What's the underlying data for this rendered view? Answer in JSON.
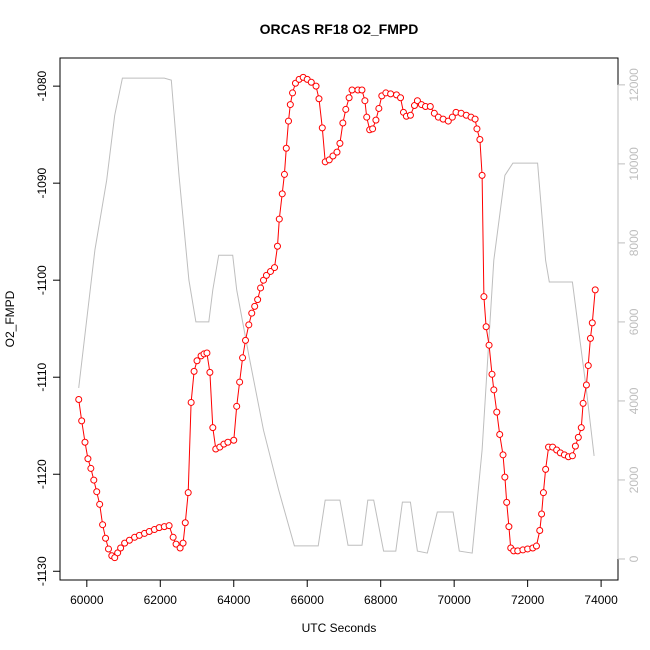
{
  "chart_data": {
    "type": "line",
    "title": "ORCAS RF18 O2_FMPD",
    "x_label": "UTC Seconds",
    "y_label": "O2_FMPD",
    "xlim": [
      59270,
      74460
    ],
    "xticks": [
      60000,
      62000,
      64000,
      66000,
      68000,
      70000,
      72000,
      74000
    ],
    "ylim": [
      -1130.9,
      -1077.1
    ],
    "yticks": [
      -1130,
      -1120,
      -1110,
      -1100,
      -1090,
      -1080
    ],
    "y2lim": [
      -532,
      12680
    ],
    "y2ticks": [
      0,
      2000,
      4000,
      6000,
      8000,
      10000,
      12000
    ],
    "y2_color": "#bebebe",
    "series": [
      {
        "color": "#bebebe",
        "axis": "y2",
        "markers": false,
        "x": [
          59780,
          60220,
          60540,
          60760,
          60970,
          62110,
          62300,
          62510,
          62780,
          62970,
          63320,
          63430,
          63590,
          63970,
          64080,
          64410,
          64810,
          65220,
          65650,
          66300,
          66490,
          66890,
          67110,
          67490,
          67650,
          67810,
          68080,
          68410,
          68590,
          68810,
          69000,
          69270,
          69540,
          69970,
          70140,
          70490,
          70760,
          71080,
          71380,
          71600,
          72270,
          72490,
          72590,
          73220,
          73600,
          73810
        ],
        "values": [
          4330,
          7820,
          9590,
          11230,
          12170,
          12170,
          12120,
          9710,
          7060,
          6000,
          6000,
          6810,
          7690,
          7690,
          6810,
          5160,
          3260,
          1750,
          330,
          330,
          1490,
          1490,
          350,
          350,
          1490,
          1490,
          200,
          200,
          1440,
          1440,
          200,
          150,
          1190,
          1190,
          200,
          150,
          2760,
          7560,
          9710,
          10020,
          10020,
          7560,
          7010,
          7010,
          4280,
          2610
        ]
      },
      {
        "color": "#ff0000",
        "axis": "y",
        "markers": true,
        "x": [
          59780,
          59860,
          59950,
          60030,
          60110,
          60190,
          60270,
          60350,
          60430,
          60510,
          60590,
          60680,
          60760,
          60840,
          60920,
          61030,
          61160,
          61300,
          61430,
          61570,
          61700,
          61840,
          61970,
          62110,
          62240,
          62350,
          62430,
          62540,
          62620,
          62680,
          62760,
          62840,
          62920,
          63000,
          63110,
          63190,
          63270,
          63350,
          63430,
          63510,
          63620,
          63730,
          63840,
          64000,
          64080,
          64160,
          64240,
          64320,
          64410,
          64490,
          64570,
          64650,
          64730,
          64810,
          64890,
          65000,
          65110,
          65190,
          65240,
          65320,
          65380,
          65430,
          65490,
          65540,
          65600,
          65680,
          65780,
          65890,
          66000,
          66110,
          66240,
          66320,
          66410,
          66490,
          66600,
          66700,
          66810,
          66890,
          66970,
          67050,
          67140,
          67220,
          67380,
          67490,
          67570,
          67620,
          67700,
          67780,
          67870,
          67950,
          68030,
          68140,
          68270,
          68430,
          68540,
          68620,
          68700,
          68810,
          68920,
          69000,
          69110,
          69220,
          69350,
          69460,
          69570,
          69700,
          69840,
          69950,
          70050,
          70190,
          70330,
          70460,
          70570,
          70620,
          70700,
          70760,
          70810,
          70870,
          70950,
          71030,
          71080,
          71160,
          71240,
          71330,
          71380,
          71430,
          71490,
          71540,
          71620,
          71730,
          71870,
          72000,
          72140,
          72240,
          72330,
          72380,
          72430,
          72490,
          72570,
          72680,
          72790,
          72890,
          73000,
          73110,
          73220,
          73300,
          73380,
          73460,
          73510,
          73600,
          73650,
          73710,
          73760,
          73840
        ],
        "values": [
          -1112.3,
          -1114.5,
          -1116.7,
          -1118.4,
          -1119.4,
          -1120.6,
          -1121.8,
          -1123.1,
          -1125.2,
          -1126.6,
          -1127.7,
          -1128.4,
          -1128.6,
          -1128.1,
          -1127.6,
          -1127.1,
          -1126.8,
          -1126.5,
          -1126.3,
          -1126.1,
          -1125.9,
          -1125.7,
          -1125.5,
          -1125.4,
          -1125.3,
          -1126.5,
          -1127.2,
          -1127.6,
          -1127.1,
          -1125.0,
          -1121.9,
          -1112.6,
          -1109.4,
          -1108.3,
          -1107.8,
          -1107.6,
          -1107.5,
          -1109.5,
          -1115.2,
          -1117.4,
          -1117.2,
          -1116.9,
          -1116.7,
          -1116.5,
          -1113.0,
          -1110.5,
          -1108.0,
          -1106.2,
          -1104.6,
          -1103.4,
          -1102.7,
          -1102.0,
          -1100.8,
          -1100.0,
          -1099.5,
          -1099.1,
          -1098.7,
          -1096.5,
          -1093.7,
          -1091.1,
          -1089.1,
          -1086.4,
          -1083.6,
          -1081.9,
          -1080.7,
          -1079.7,
          -1079.3,
          -1079.1,
          -1079.3,
          -1079.6,
          -1080.0,
          -1081.3,
          -1084.3,
          -1087.8,
          -1087.6,
          -1087.2,
          -1086.8,
          -1085.9,
          -1083.8,
          -1082.4,
          -1081.2,
          -1080.4,
          -1080.4,
          -1080.4,
          -1081.5,
          -1083.2,
          -1084.5,
          -1084.4,
          -1083.5,
          -1082.3,
          -1081.0,
          -1080.7,
          -1080.8,
          -1080.9,
          -1081.2,
          -1082.7,
          -1083.1,
          -1083.0,
          -1082.0,
          -1081.5,
          -1081.9,
          -1082.1,
          -1082.1,
          -1082.8,
          -1083.2,
          -1083.4,
          -1083.6,
          -1083.2,
          -1082.7,
          -1082.8,
          -1083.0,
          -1083.2,
          -1083.4,
          -1084.4,
          -1085.5,
          -1089.2,
          -1101.7,
          -1104.8,
          -1106.7,
          -1109.7,
          -1111.3,
          -1113.6,
          -1115.9,
          -1118.0,
          -1120.3,
          -1122.9,
          -1125.4,
          -1127.6,
          -1127.9,
          -1127.9,
          -1127.8,
          -1127.7,
          -1127.6,
          -1127.4,
          -1125.8,
          -1124.1,
          -1121.9,
          -1119.5,
          -1117.2,
          -1117.2,
          -1117.5,
          -1117.8,
          -1118.0,
          -1118.2,
          -1118.1,
          -1117.1,
          -1116.2,
          -1115.2,
          -1112.7,
          -1110.8,
          -1108.8,
          -1106.0,
          -1104.4,
          -1101.0
        ]
      }
    ]
  }
}
